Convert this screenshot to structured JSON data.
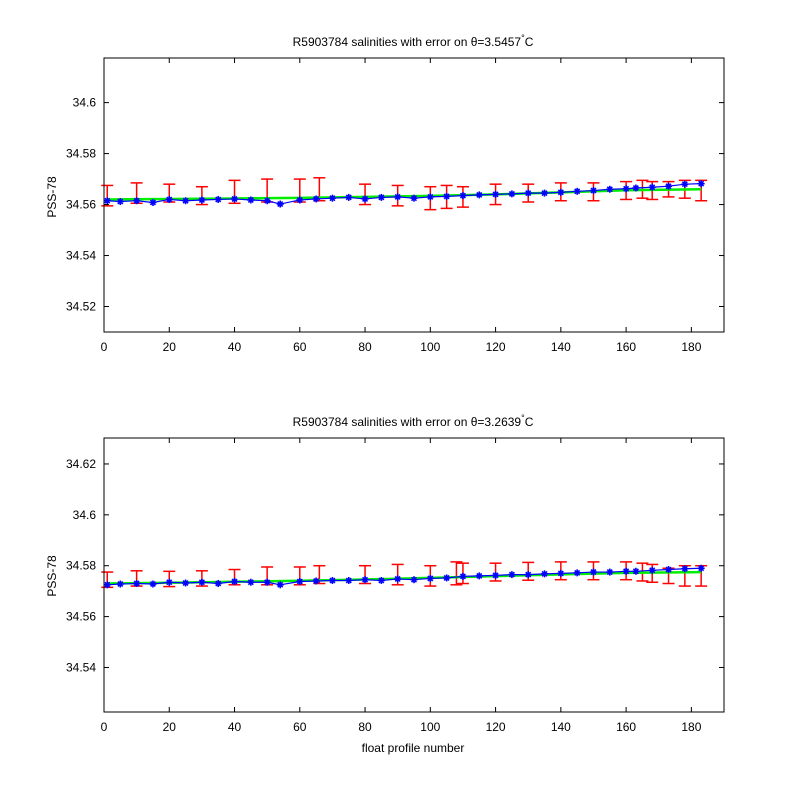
{
  "chart_data": [
    {
      "type": "scatter",
      "title_main": "R5903784 salinities with error on ",
      "title_theta": "θ=3.5457",
      "title_deg": "°",
      "title_unit": "C",
      "xlabel": "",
      "ylabel": "PSS-78",
      "xlim": [
        0,
        190
      ],
      "ylim": [
        34.51,
        34.6175
      ],
      "xticks": [
        0,
        20,
        40,
        60,
        80,
        100,
        120,
        140,
        160,
        180
      ],
      "yticks": [
        34.52,
        34.54,
        34.56,
        34.58,
        34.6
      ],
      "xtick_labels": [
        "0",
        "20",
        "40",
        "60",
        "80",
        "100",
        "120",
        "140",
        "160",
        "180"
      ],
      "ytick_labels": [
        "34.52",
        "34.54",
        "34.56",
        "34.58",
        "34.6"
      ],
      "grid": false,
      "series": [
        {
          "color": "#ff0000",
          "marker": "errorbar",
          "x": [
            1,
            10,
            20,
            30,
            40,
            50,
            60,
            66,
            80,
            90,
            100,
            105,
            110,
            120,
            130,
            140,
            150,
            160,
            165,
            168,
            173,
            178,
            183
          ],
          "y": [
            34.5635,
            34.5645,
            34.5645,
            34.5635,
            34.565,
            34.5655,
            34.5655,
            34.566,
            34.564,
            34.5635,
            34.5625,
            34.563,
            34.563,
            34.564,
            34.5645,
            34.565,
            34.565,
            34.5655,
            34.566,
            34.5655,
            34.566,
            34.566,
            34.5655
          ],
          "err": [
            0.004,
            0.004,
            0.0035,
            0.0035,
            0.0045,
            0.0045,
            0.0045,
            0.0045,
            0.004,
            0.004,
            0.0045,
            0.0045,
            0.004,
            0.004,
            0.0035,
            0.0035,
            0.0035,
            0.0035,
            0.0035,
            0.0035,
            0.003,
            0.0035,
            0.004
          ]
        },
        {
          "color": "#00ee00",
          "marker": "line",
          "x": [
            1,
            20,
            40,
            60,
            80,
            100,
            120,
            140,
            160,
            183
          ],
          "y": [
            34.562,
            34.5622,
            34.5624,
            34.5626,
            34.563,
            34.5634,
            34.564,
            34.5648,
            34.5656,
            34.566
          ]
        },
        {
          "color": "#0000ff",
          "marker": "star",
          "x": [
            1,
            5,
            10,
            15,
            20,
            25,
            30,
            35,
            40,
            45,
            50,
            54,
            60,
            65,
            70,
            75,
            80,
            85,
            90,
            95,
            100,
            105,
            110,
            115,
            120,
            125,
            130,
            135,
            140,
            145,
            150,
            155,
            160,
            163,
            168,
            173,
            178,
            183
          ],
          "y": [
            34.5615,
            34.5612,
            34.5615,
            34.5608,
            34.562,
            34.5615,
            34.5618,
            34.562,
            34.5622,
            34.5618,
            34.5615,
            34.5602,
            34.5618,
            34.5622,
            34.5625,
            34.5628,
            34.5622,
            34.5628,
            34.563,
            34.5625,
            34.563,
            34.5632,
            34.5635,
            34.5638,
            34.564,
            34.5642,
            34.5645,
            34.5645,
            34.5648,
            34.5652,
            34.5655,
            34.566,
            34.5662,
            34.5665,
            34.5668,
            34.5672,
            34.568,
            34.5682
          ]
        }
      ]
    },
    {
      "type": "scatter",
      "title_main": "R5903784 salinities with error on ",
      "title_theta": "θ=3.2639",
      "title_deg": "°",
      "title_unit": "C",
      "xlabel": "float profile number",
      "ylabel": "PSS-78",
      "xlim": [
        0,
        190
      ],
      "ylim": [
        34.5225,
        34.6302
      ],
      "xticks": [
        0,
        20,
        40,
        60,
        80,
        100,
        120,
        140,
        160,
        180
      ],
      "yticks": [
        34.54,
        34.56,
        34.58,
        34.6,
        34.62
      ],
      "xtick_labels": [
        "0",
        "20",
        "40",
        "60",
        "80",
        "100",
        "120",
        "140",
        "160",
        "180"
      ],
      "ytick_labels": [
        "34.54",
        "34.56",
        "34.58",
        "34.6",
        "34.62"
      ],
      "grid": false,
      "series": [
        {
          "color": "#ff0000",
          "marker": "errorbar",
          "x": [
            1,
            10,
            20,
            30,
            40,
            50,
            60,
            66,
            80,
            90,
            100,
            108,
            110,
            120,
            130,
            140,
            150,
            160,
            165,
            168,
            173,
            178,
            183
          ],
          "y": [
            34.5745,
            34.575,
            34.5748,
            34.575,
            34.5755,
            34.576,
            34.576,
            34.5765,
            34.5765,
            34.5765,
            34.576,
            34.577,
            34.577,
            34.5775,
            34.5778,
            34.578,
            34.578,
            34.578,
            34.5775,
            34.577,
            34.576,
            34.576,
            34.576
          ],
          "err": [
            0.003,
            0.003,
            0.003,
            0.003,
            0.003,
            0.0035,
            0.0035,
            0.0035,
            0.0035,
            0.004,
            0.004,
            0.0045,
            0.004,
            0.0035,
            0.0035,
            0.0035,
            0.0035,
            0.0035,
            0.0035,
            0.0035,
            0.003,
            0.004,
            0.004
          ]
        },
        {
          "color": "#00ee00",
          "marker": "line",
          "x": [
            1,
            20,
            40,
            60,
            80,
            100,
            120,
            140,
            160,
            183
          ],
          "y": [
            34.573,
            34.5733,
            34.5737,
            34.5741,
            34.5746,
            34.5752,
            34.5759,
            34.5766,
            34.5772,
            34.5775
          ]
        },
        {
          "color": "#0000ff",
          "marker": "star",
          "x": [
            1,
            5,
            10,
            15,
            20,
            25,
            30,
            35,
            40,
            45,
            50,
            54,
            60,
            65,
            70,
            75,
            80,
            85,
            90,
            95,
            100,
            105,
            110,
            115,
            120,
            125,
            130,
            135,
            140,
            145,
            150,
            155,
            160,
            163,
            168,
            173,
            178,
            183
          ],
          "y": [
            34.5725,
            34.5728,
            34.573,
            34.5728,
            34.5735,
            34.5732,
            34.5735,
            34.573,
            34.5738,
            34.5735,
            34.5735,
            34.5725,
            34.5738,
            34.574,
            34.5742,
            34.5742,
            34.5745,
            34.5742,
            34.5748,
            34.5745,
            34.575,
            34.5752,
            34.5758,
            34.576,
            34.5762,
            34.5765,
            34.5765,
            34.5768,
            34.577,
            34.5772,
            34.5775,
            34.5775,
            34.5778,
            34.5778,
            34.5782,
            34.5785,
            34.5788,
            34.579
          ]
        }
      ]
    }
  ]
}
